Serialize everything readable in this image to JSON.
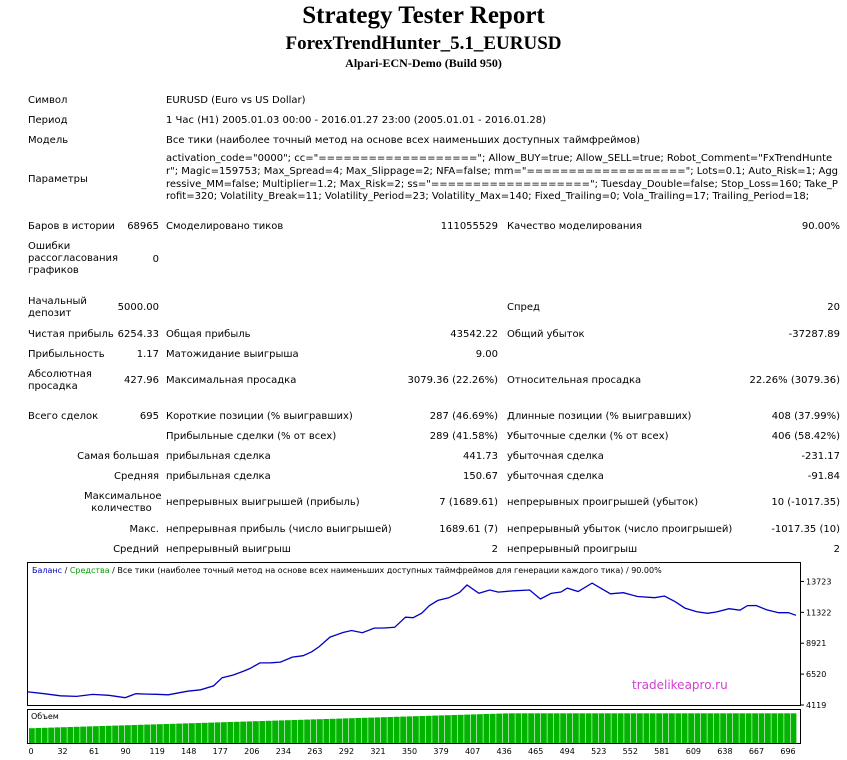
{
  "header": {
    "title": "Strategy Tester Report",
    "subtitle": "ForexTrendHunter_5.1_EURUSD",
    "server": "Alpari-ECN-Demo (Build 950)"
  },
  "info": {
    "symbol_label": "Символ",
    "symbol_value": "EURUSD (Euro vs US Dollar)",
    "period_label": "Период",
    "period_value": "1 Час (H1) 2005.01.03 00:00 - 2016.01.27 23:00 (2005.01.01 - 2016.01.28)",
    "model_label": "Модель",
    "model_value": "Все тики (наиболее точный метод на основе всех наименьших доступных таймфреймов)",
    "params_label": "Параметры",
    "params_value": "activation_code=\"0000\"; cc=\"===================\"; Allow_BUY=true; Allow_SELL=true; Robot_Comment=\"FxTrendHunter\"; Magic=159753; Max_Spread=4; Max_Slippage=2; NFA=false; mm=\"===================\"; Lots=0.1; Auto_Risk=1; Aggressive_MM=false; Multiplier=1.2; Max_Risk=2; ss=\"===================\"; Tuesday_Double=false; Stop_Loss=160; Take_Profit=320; Volatility_Break=11; Volatility_Period=23; Volatility_Max=140; Fixed_Trailing=0; Vola_Trailing=17; Trailing_Period=18;"
  },
  "stats": {
    "bars_label": "Баров в истории",
    "bars_value": "68965",
    "ticks_label": "Смоделировано тиков",
    "ticks_value": "111055529",
    "quality_label": "Качество моделирования",
    "quality_value": "90.00%",
    "errors_label": "Ошибки рассогласования графиков",
    "errors_value": "0",
    "deposit_label": "Начальный депозит",
    "deposit_value": "5000.00",
    "spread_label": "Спред",
    "spread_value": "20",
    "net_label": "Чистая прибыль",
    "net_value": "6254.33",
    "gross_profit_label": "Общая прибыль",
    "gross_profit_value": "43542.22",
    "gross_loss_label": "Общий убыток",
    "gross_loss_value": "-37287.89",
    "pf_label": "Прибыльность",
    "pf_value": "1.17",
    "expected_label": "Матожидание выигрыша",
    "expected_value": "9.00",
    "abs_dd_label": "Абсолютная просадка",
    "abs_dd_value": "427.96",
    "max_dd_label": "Максимальная просадка",
    "max_dd_value": "3079.36 (22.26%)",
    "rel_dd_label": "Относительная просадка",
    "rel_dd_value": "22.26% (3079.36)",
    "trades_label": "Всего сделок",
    "trades_value": "695",
    "short_label": "Короткие позиции (% выигравших)",
    "short_value": "287 (46.69%)",
    "long_label": "Длинные позиции (% выигравших)",
    "long_value": "408 (37.99%)",
    "profit_trades_label": "Прибыльные сделки (% от всех)",
    "profit_trades_value": "289 (41.58%)",
    "loss_trades_label": "Убыточные сделки (% от всех)",
    "loss_trades_value": "406 (58.42%)",
    "largest_label": "Самая большая",
    "largest_profit_label": "прибыльная сделка",
    "largest_profit_value": "441.73",
    "largest_loss_label": "убыточная сделка",
    "largest_loss_value": "-231.17",
    "average_label": "Средняя",
    "average_profit_label": "прибыльная сделка",
    "average_profit_value": "150.67",
    "average_loss_label": "убыточная сделка",
    "average_loss_value": "-91.84",
    "max_count_label": "Максимальное количество",
    "max_cons_wins_label": "непрерывных выигрышей (прибыль)",
    "max_cons_wins_value": "7 (1689.61)",
    "max_cons_losses_label": "непрерывных проигрышей (убыток)",
    "max_cons_losses_value": "10 (-1017.35)",
    "max_label": "Макс.",
    "max_cons_profit_label": "непрерывная прибыль (число выигрышей)",
    "max_cons_profit_value": "1689.61 (7)",
    "max_cons_loss_label": "непрерывный убыток (число проигрышей)",
    "max_cons_loss_value": "-1017.35 (10)",
    "avg_label": "Средний",
    "avg_cons_wins_label": "непрерывный выигрыш",
    "avg_cons_wins_value": "2",
    "avg_cons_losses_label": "непрерывный проигрыш",
    "avg_cons_losses_value": "2"
  },
  "chart_data": {
    "type": "line",
    "legend": {
      "balance": "Баланс",
      "separator1": " / ",
      "equity": "Средства",
      "rest": " / Все тики (наиболее точный метод на основе всех наименьших доступных таймфреймов для генерации каждого тика) / 90.00%"
    },
    "watermark": "tradelikeapro.ru",
    "volume_label": "Объем",
    "ylim": [
      4119,
      14300
    ],
    "y_ticks": [
      "13723",
      "11322",
      "8921",
      "6520",
      "4119"
    ],
    "y_tick_values": [
      13723,
      11322,
      8921,
      6520,
      4119
    ],
    "x_ticks": [
      "0",
      "32",
      "61",
      "90",
      "119",
      "148",
      "177",
      "206",
      "234",
      "263",
      "292",
      "321",
      "350",
      "379",
      "407",
      "436",
      "465",
      "494",
      "523",
      "552",
      "581",
      "609",
      "638",
      "667",
      "696"
    ],
    "xlim": [
      0,
      712
    ],
    "series": [
      {
        "color": "#0000c8",
        "x": [
          0,
          15,
          30,
          45,
          60,
          75,
          90,
          100,
          110,
          119,
          130,
          148,
          160,
          172,
          180,
          190,
          200,
          206,
          215,
          225,
          234,
          245,
          255,
          263,
          270,
          280,
          292,
          300,
          310,
          321,
          330,
          340,
          350,
          357,
          365,
          372,
          380,
          390,
          400,
          407,
          418,
          428,
          436,
          450,
          465,
          475,
          485,
          494,
          500,
          510,
          523,
          532,
          540,
          552,
          565,
          581,
          590,
          600,
          609,
          620,
          630,
          638,
          650,
          660,
          667,
          675,
          685,
          696,
          705,
          712
        ],
        "y": [
          5000,
          4950,
          4880,
          4930,
          4850,
          4870,
          4780,
          4860,
          4920,
          5000,
          5050,
          5100,
          5300,
          5700,
          6100,
          6400,
          6800,
          7100,
          7300,
          7400,
          7550,
          7700,
          7900,
          8300,
          8800,
          9300,
          9750,
          10000,
          9600,
          10050,
          10150,
          10300,
          10850,
          10900,
          11350,
          11700,
          12200,
          12500,
          13000,
          13350,
          12800,
          13150,
          12750,
          12950,
          13100,
          12500,
          12700,
          12900,
          13300,
          12800,
          13550,
          13200,
          12900,
          12750,
          12550,
          12550,
          12450,
          12100,
          11700,
          11500,
          11150,
          11350,
          11700,
          11350,
          11800,
          11900,
          11650,
          11200,
          11300,
          11180
        ]
      }
    ],
    "volume": {
      "x_start": 0,
      "x_end": 712,
      "initial": 0.45,
      "final": 0.9
    }
  }
}
